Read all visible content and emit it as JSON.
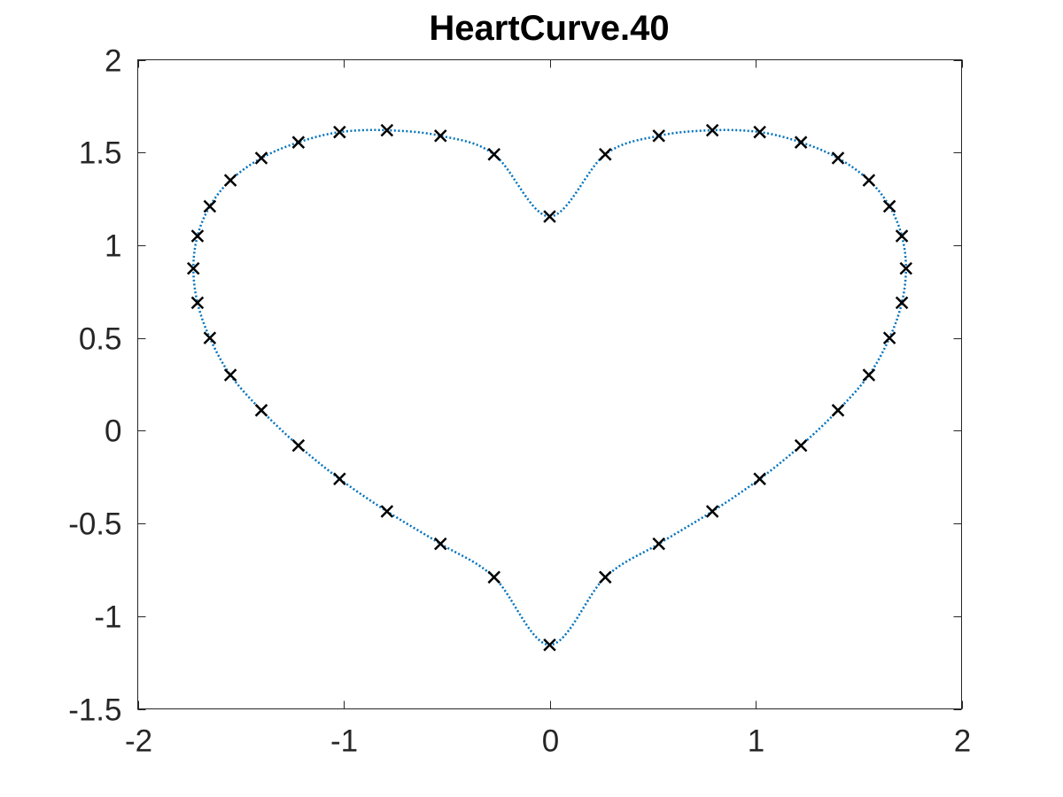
{
  "chart_data": {
    "type": "line",
    "title": "HeartCurve.40",
    "xlabel": "",
    "ylabel": "",
    "xlim": [
      -2,
      2
    ],
    "ylim": [
      -1.5,
      2
    ],
    "xticks": [
      -2,
      -1,
      0,
      1,
      2
    ],
    "yticks": [
      -1.5,
      -1,
      -0.5,
      0,
      0.5,
      1,
      1.5,
      2
    ],
    "xtick_labels": [
      "-2",
      "-1",
      "0",
      "1",
      "2"
    ],
    "ytick_labels": [
      "-1.5",
      "-1",
      "-0.5",
      "0",
      "0.5",
      "1",
      "1.5",
      "2"
    ],
    "grid": false,
    "series": [
      {
        "style": "dotted-line-with-x-markers",
        "line_color": "#0072BD",
        "marker_color": "#000000",
        "points": [
          [
            0,
            1.155
          ],
          [
            0.27,
            1.49
          ],
          [
            0.53,
            1.59
          ],
          [
            0.79,
            1.62
          ],
          [
            1.02,
            1.61
          ],
          [
            1.22,
            1.555
          ],
          [
            1.4,
            1.47
          ],
          [
            1.55,
            1.35
          ],
          [
            1.65,
            1.21
          ],
          [
            1.71,
            1.05
          ],
          [
            1.73,
            0.875
          ],
          [
            1.71,
            0.69
          ],
          [
            1.65,
            0.5
          ],
          [
            1.55,
            0.3
          ],
          [
            1.4,
            0.11
          ],
          [
            1.22,
            -0.08
          ],
          [
            1.02,
            -0.26
          ],
          [
            0.79,
            -0.435
          ],
          [
            0.53,
            -0.61
          ],
          [
            0.27,
            -0.79
          ],
          [
            0,
            -1.155
          ],
          [
            -0.27,
            -0.79
          ],
          [
            -0.53,
            -0.61
          ],
          [
            -0.79,
            -0.435
          ],
          [
            -1.02,
            -0.26
          ],
          [
            -1.22,
            -0.08
          ],
          [
            -1.4,
            0.11
          ],
          [
            -1.55,
            0.3
          ],
          [
            -1.65,
            0.5
          ],
          [
            -1.71,
            0.69
          ],
          [
            -1.73,
            0.875
          ],
          [
            -1.71,
            1.05
          ],
          [
            -1.65,
            1.21
          ],
          [
            -1.55,
            1.35
          ],
          [
            -1.4,
            1.47
          ],
          [
            -1.22,
            1.555
          ],
          [
            -1.02,
            1.61
          ],
          [
            -0.79,
            1.62
          ],
          [
            -0.53,
            1.59
          ],
          [
            -0.27,
            1.49
          ]
        ]
      }
    ]
  }
}
